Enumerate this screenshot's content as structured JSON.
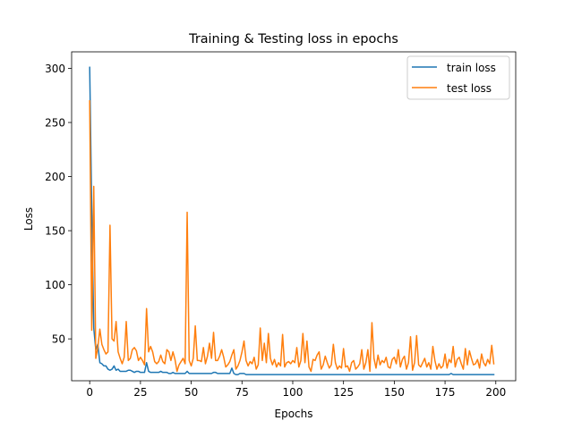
{
  "chart_data": {
    "type": "line",
    "title": "Training & Testing loss in epochs",
    "xlabel": "Epochs",
    "ylabel": "Loss",
    "xlim": [
      -8.9,
      209.8
    ],
    "ylim": [
      11.3,
      315.3
    ],
    "x_ticks": [
      0,
      25,
      50,
      75,
      100,
      125,
      150,
      175,
      200
    ],
    "x_tick_labels": [
      "0",
      "25",
      "50",
      "75",
      "100",
      "125",
      "150",
      "175",
      "200"
    ],
    "y_ticks": [
      50,
      100,
      150,
      200,
      250,
      300
    ],
    "y_tick_labels": [
      "50",
      "100",
      "150",
      "200",
      "250",
      "300"
    ],
    "grid": false,
    "legend_position": "top-right",
    "series": [
      {
        "name": "train loss",
        "color": "#1f77b4",
        "x": [
          0,
          1,
          2,
          3,
          4,
          5,
          6,
          7,
          8,
          9,
          10,
          11,
          12,
          13,
          14,
          15,
          16,
          17,
          18,
          19,
          20,
          21,
          22,
          23,
          24,
          25,
          26,
          27,
          28,
          29,
          30,
          31,
          32,
          33,
          34,
          35,
          36,
          37,
          38,
          39,
          40,
          41,
          42,
          43,
          44,
          45,
          46,
          47,
          48,
          49,
          50,
          51,
          52,
          53,
          54,
          55,
          56,
          57,
          58,
          59,
          60,
          61,
          62,
          63,
          64,
          65,
          66,
          67,
          68,
          69,
          70,
          71,
          72,
          73,
          74,
          75,
          76,
          77,
          78,
          79,
          80,
          81,
          82,
          83,
          84,
          85,
          86,
          87,
          88,
          89,
          90,
          91,
          92,
          93,
          94,
          95,
          96,
          97,
          98,
          99,
          100,
          101,
          102,
          103,
          104,
          105,
          106,
          107,
          108,
          109,
          110,
          111,
          112,
          113,
          114,
          115,
          116,
          117,
          118,
          119,
          120,
          121,
          122,
          123,
          124,
          125,
          126,
          127,
          128,
          129,
          130,
          131,
          132,
          133,
          134,
          135,
          136,
          137,
          138,
          139,
          140,
          141,
          142,
          143,
          144,
          145,
          146,
          147,
          148,
          149,
          150,
          151,
          152,
          153,
          154,
          155,
          156,
          157,
          158,
          159,
          160,
          161,
          162,
          163,
          164,
          165,
          166,
          167,
          168,
          169,
          170,
          171,
          172,
          173,
          174,
          175,
          176,
          177,
          178,
          179,
          180,
          181,
          182,
          183,
          184,
          185,
          186,
          187,
          188,
          189,
          190,
          191,
          192,
          193,
          194,
          195,
          196,
          197,
          198,
          199
        ],
        "values": [
          301,
          170,
          60,
          40,
          45,
          28,
          27,
          25,
          25,
          22,
          21,
          22,
          25,
          21,
          22,
          20,
          20,
          20,
          20,
          21,
          21,
          20,
          19,
          20,
          20,
          19,
          19,
          19,
          28,
          20,
          19,
          19,
          19,
          19,
          19,
          20,
          19,
          19,
          19,
          18,
          18,
          19,
          18,
          18,
          18,
          18,
          18,
          18,
          20,
          18,
          18,
          18,
          18,
          18,
          18,
          18,
          18,
          18,
          18,
          18,
          18,
          19,
          19,
          18,
          18,
          18,
          18,
          18,
          18,
          18,
          23,
          18,
          17,
          17,
          18,
          18,
          18,
          17,
          17,
          17,
          17,
          17,
          17,
          17,
          17,
          17,
          17,
          17,
          17,
          17,
          17,
          17,
          17,
          17,
          17,
          17,
          17,
          17,
          17,
          17,
          17,
          17,
          17,
          17,
          17,
          17,
          17,
          17,
          17,
          17,
          17,
          17,
          17,
          17,
          17,
          17,
          17,
          17,
          17,
          17,
          17,
          17,
          17,
          17,
          17,
          17,
          17,
          17,
          17,
          17,
          17,
          17,
          17,
          17,
          17,
          17,
          17,
          17,
          17,
          17,
          17,
          17,
          17,
          17,
          17,
          17,
          17,
          17,
          17,
          17,
          17,
          17,
          17,
          17,
          17,
          17,
          17,
          17,
          17,
          17,
          17,
          17,
          17,
          17,
          17,
          17,
          17,
          17,
          17,
          17,
          17,
          17,
          17,
          17,
          17,
          17,
          17,
          17,
          18,
          17,
          17,
          17,
          17,
          17,
          17,
          17,
          17,
          17,
          17,
          17,
          17,
          17,
          17,
          17,
          17,
          17,
          17,
          17,
          17,
          17
        ]
      },
      {
        "name": "test loss",
        "color": "#ff7f0e",
        "x": [
          0,
          1,
          2,
          3,
          4,
          5,
          6,
          7,
          8,
          9,
          10,
          11,
          12,
          13,
          14,
          15,
          16,
          17,
          18,
          19,
          20,
          21,
          22,
          23,
          24,
          25,
          26,
          27,
          28,
          29,
          30,
          31,
          32,
          33,
          34,
          35,
          36,
          37,
          38,
          39,
          40,
          41,
          42,
          43,
          44,
          45,
          46,
          47,
          48,
          49,
          50,
          51,
          52,
          53,
          54,
          55,
          56,
          57,
          58,
          59,
          60,
          61,
          62,
          63,
          64,
          65,
          66,
          67,
          68,
          69,
          70,
          71,
          72,
          73,
          74,
          75,
          76,
          77,
          78,
          79,
          80,
          81,
          82,
          83,
          84,
          85,
          86,
          87,
          88,
          89,
          90,
          91,
          92,
          93,
          94,
          95,
          96,
          97,
          98,
          99,
          100,
          101,
          102,
          103,
          104,
          105,
          106,
          107,
          108,
          109,
          110,
          111,
          112,
          113,
          114,
          115,
          116,
          117,
          118,
          119,
          120,
          121,
          122,
          123,
          124,
          125,
          126,
          127,
          128,
          129,
          130,
          131,
          132,
          133,
          134,
          135,
          136,
          137,
          138,
          139,
          140,
          141,
          142,
          143,
          144,
          145,
          146,
          147,
          148,
          149,
          150,
          151,
          152,
          153,
          154,
          155,
          156,
          157,
          158,
          159,
          160,
          161,
          162,
          163,
          164,
          165,
          166,
          167,
          168,
          169,
          170,
          171,
          172,
          173,
          174,
          175,
          176,
          177,
          178,
          179,
          180,
          181,
          182,
          183,
          184,
          185,
          186,
          187,
          188,
          189,
          190,
          191,
          192,
          193,
          194,
          195,
          196,
          197,
          198,
          199
        ],
        "values": [
          270,
          58,
          191,
          32,
          42,
          59,
          45,
          40,
          36,
          38,
          155,
          50,
          48,
          66,
          38,
          32,
          27,
          33,
          66,
          30,
          32,
          40,
          42,
          39,
          30,
          33,
          30,
          26,
          78,
          38,
          43,
          38,
          29,
          27,
          29,
          35,
          29,
          27,
          40,
          38,
          30,
          38,
          31,
          20,
          26,
          29,
          32,
          27,
          167,
          30,
          25,
          32,
          62,
          30,
          30,
          29,
          42,
          27,
          34,
          46,
          32,
          56,
          30,
          30,
          34,
          40,
          33,
          24,
          26,
          29,
          35,
          40,
          22,
          25,
          30,
          38,
          48,
          30,
          25,
          29,
          27,
          33,
          22,
          26,
          60,
          30,
          46,
          28,
          55,
          32,
          26,
          31,
          24,
          28,
          25,
          54,
          24,
          28,
          29,
          27,
          30,
          28,
          42,
          24,
          30,
          55,
          28,
          48,
          24,
          20,
          31,
          30,
          35,
          38,
          22,
          26,
          34,
          28,
          23,
          26,
          45,
          28,
          22,
          25,
          23,
          41,
          24,
          25,
          20,
          28,
          30,
          22,
          24,
          27,
          40,
          22,
          28,
          40,
          20,
          65,
          32,
          23,
          35,
          26,
          30,
          28,
          33,
          24,
          23,
          31,
          33,
          27,
          40,
          24,
          31,
          34,
          22,
          28,
          52,
          21,
          28,
          53,
          26,
          24,
          28,
          32,
          24,
          28,
          22,
          43,
          30,
          22,
          27,
          23,
          25,
          36,
          23,
          31,
          28,
          43,
          24,
          31,
          33,
          27,
          22,
          41,
          26,
          39,
          32,
          26,
          27,
          31,
          23,
          36,
          28,
          25,
          31,
          27,
          44,
          27
        ]
      }
    ]
  }
}
